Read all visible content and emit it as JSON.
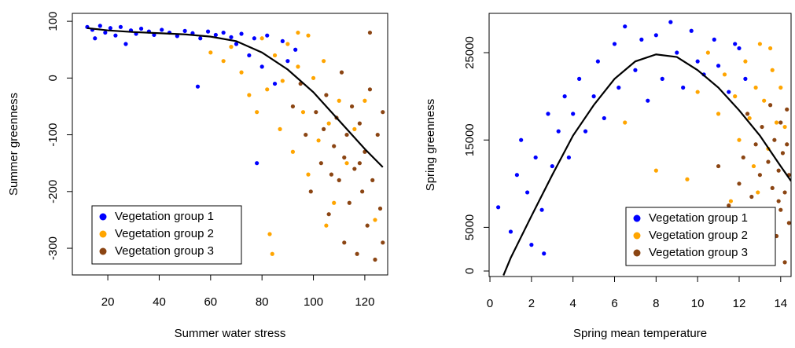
{
  "chart_data": [
    {
      "type": "scatter",
      "xlabel": "Summer water stress",
      "ylabel": "Summer greenness",
      "xlim": [
        6.2,
        128.9
      ],
      "ylim": [
        -347,
        114
      ],
      "xticks": [
        20,
        40,
        60,
        80,
        100,
        120
      ],
      "yticks": [
        100,
        0,
        -100,
        -200,
        -300
      ],
      "legend": "bottomleft",
      "series": [
        {
          "name": "Vegetation group 1",
          "color": "#0000ff",
          "x": [
            12,
            14,
            15,
            17,
            19,
            21,
            23,
            25,
            27,
            29,
            31,
            33,
            36,
            38,
            41,
            44,
            47,
            50,
            53,
            56,
            59,
            62,
            65,
            68,
            70,
            72,
            75,
            77,
            80,
            82,
            85,
            88,
            90,
            78,
            93,
            55
          ],
          "values": [
            90,
            85,
            70,
            92,
            80,
            88,
            75,
            90,
            60,
            84,
            78,
            87,
            82,
            76,
            85,
            80,
            74,
            83,
            79,
            70,
            82,
            76,
            80,
            72,
            60,
            78,
            40,
            70,
            20,
            75,
            -10,
            65,
            30,
            -150,
            50,
            -15
          ]
        },
        {
          "name": "Vegetation group 2",
          "color": "#ffa500",
          "x": [
            60,
            65,
            68,
            72,
            75,
            78,
            80,
            82,
            84,
            85,
            87,
            88,
            90,
            92,
            94,
            96,
            98,
            100,
            102,
            104,
            106,
            108,
            110,
            113,
            116,
            120,
            124,
            98,
            94,
            83,
            105
          ],
          "values": [
            45,
            30,
            55,
            10,
            -30,
            -60,
            70,
            -20,
            -310,
            40,
            -90,
            -5,
            60,
            -130,
            20,
            -60,
            -170,
            0,
            -110,
            30,
            -80,
            -220,
            -40,
            -150,
            -90,
            -40,
            -250,
            75,
            80,
            -275,
            -260
          ]
        },
        {
          "name": "Vegetation group 3",
          "color": "#8b4513",
          "x": [
            92,
            95,
            97,
            99,
            101,
            103,
            105,
            106,
            108,
            109,
            110,
            111,
            112,
            113,
            114,
            115,
            116,
            117,
            118,
            119,
            120,
            121,
            122,
            122,
            123,
            124,
            125,
            126,
            127,
            127,
            118,
            112,
            107,
            104
          ],
          "values": [
            -50,
            -10,
            -100,
            -200,
            -60,
            -150,
            -30,
            -240,
            -120,
            -70,
            -180,
            10,
            -290,
            -100,
            -220,
            -50,
            -160,
            -310,
            -80,
            -200,
            -130,
            -260,
            -20,
            80,
            -180,
            -320,
            -100,
            -230,
            -60,
            -290,
            -150,
            -140,
            -170,
            -90
          ]
        }
      ],
      "fit": {
        "color": "#000000",
        "x": [
          12,
          20,
          30,
          40,
          50,
          60,
          70,
          80,
          90,
          100,
          110,
          120,
          127
        ],
        "values": [
          88,
          84,
          81,
          79,
          77,
          73,
          65,
          45,
          15,
          -25,
          -75,
          -125,
          -157
        ]
      }
    },
    {
      "type": "scatter",
      "xlabel": "Spring mean temperature",
      "ylabel": "Spring greenness",
      "xlim": [
        -0.04,
        14.5
      ],
      "ylim": [
        -630,
        29500
      ],
      "xticks": [
        0,
        2,
        4,
        6,
        8,
        10,
        12,
        14
      ],
      "yticks": [
        0,
        5000,
        15000,
        25000
      ],
      "legend": "bottomright",
      "series": [
        {
          "name": "Vegetation group 1",
          "color": "#0000ff",
          "x": [
            0.4,
            1,
            1.3,
            1.5,
            1.8,
            2,
            2.2,
            2.5,
            2.6,
            2.8,
            3,
            3.3,
            3.6,
            3.8,
            4,
            4.3,
            4.6,
            5,
            5.2,
            5.5,
            6,
            6.2,
            6.5,
            7,
            7.3,
            7.6,
            8,
            8.3,
            8.7,
            9,
            9.3,
            9.7,
            10,
            10.3,
            10.8,
            11,
            11.5,
            12,
            12.3,
            11.8
          ],
          "values": [
            7300,
            4500,
            11000,
            15000,
            9000,
            3000,
            13000,
            7000,
            2000,
            18000,
            12000,
            16000,
            20000,
            13000,
            18000,
            22000,
            16000,
            20000,
            24000,
            17500,
            26000,
            21000,
            28000,
            23000,
            26500,
            19500,
            27000,
            22000,
            28500,
            25000,
            21000,
            27500,
            24000,
            22500,
            26500,
            23500,
            20500,
            25500,
            22000,
            26000
          ]
        },
        {
          "name": "Vegetation group 2",
          "color": "#ffa500",
          "x": [
            6.5,
            8,
            9.5,
            10,
            10.5,
            11,
            11.3,
            11.8,
            12,
            12.3,
            12.5,
            12.7,
            12.8,
            13,
            13.2,
            13.4,
            13.6,
            13.8,
            14,
            14.2,
            11.6,
            12.9,
            13.5
          ],
          "values": [
            17000,
            11500,
            10500,
            20500,
            25000,
            18000,
            22500,
            20000,
            15000,
            24000,
            17500,
            12000,
            21000,
            26000,
            19500,
            14000,
            23000,
            17000,
            21000,
            16500,
            8000,
            9000,
            25500
          ]
        },
        {
          "name": "Vegetation group 3",
          "color": "#8b4513",
          "x": [
            11,
            11.5,
            12,
            12.2,
            12.4,
            12.6,
            12.8,
            13,
            13.1,
            13.2,
            13.4,
            13.5,
            13.6,
            13.7,
            13.8,
            13.9,
            14,
            14,
            14.1,
            14.2,
            14.2,
            14.3,
            14.4,
            14.4,
            13.3,
            12.1,
            14.3,
            13.9
          ],
          "values": [
            12000,
            7500,
            10000,
            13000,
            18000,
            8500,
            14500,
            11000,
            16500,
            6500,
            12500,
            19000,
            9500,
            15000,
            4000,
            11500,
            17000,
            7000,
            13500,
            1000,
            9000,
            14500,
            5500,
            11000,
            2500,
            4500,
            18500,
            8000
          ]
        }
      ],
      "fit": {
        "color": "#000000",
        "x": [
          0.65,
          1,
          2,
          3,
          4,
          5,
          6,
          7,
          8,
          9,
          10,
          11,
          12,
          13,
          14,
          14.5
        ],
        "values": [
          -500,
          1500,
          6300,
          11000,
          15500,
          19000,
          22000,
          24000,
          24800,
          24500,
          23000,
          21000,
          18400,
          15500,
          12000,
          10300
        ]
      }
    }
  ]
}
